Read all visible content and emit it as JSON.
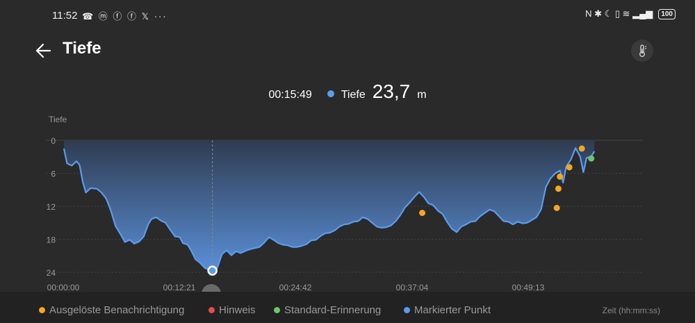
{
  "status_bar": {
    "time": "11:52",
    "notification_icons": "☎ ⓜ ⓕ ⓕ 𝕏 ···",
    "right_icons": "N ✱ ☾ ▯ ≋ ▂▄▆",
    "battery": "100"
  },
  "header": {
    "title": "Tiefe",
    "back_icon": "arrow-left-icon",
    "action_icon": "thermometer-icon"
  },
  "readout": {
    "time": "00:15:49",
    "label": "Tiefe",
    "value": "23,7",
    "unit": "m"
  },
  "colors": {
    "line": "#5b9cf0",
    "notification": "#f5a623",
    "hint": "#e84b4b",
    "reminder": "#6dc56b",
    "marked": "#5b9cf0",
    "background": "#2a2a2a"
  },
  "chart_data": {
    "type": "area",
    "ylabel": "Tiefe",
    "y_inverted": true,
    "ylim": [
      0,
      24
    ],
    "y_ticks": [
      "0",
      "6",
      "12",
      "18",
      "24"
    ],
    "x_ticks": [
      "00:00:00",
      "00:12:21",
      "00:24:42",
      "00:37:04",
      "00:49:13"
    ],
    "xlim_sec": [
      0,
      3700
    ],
    "series": [
      {
        "points": [
          [
            0,
            1.5
          ],
          [
            20,
            4.2
          ],
          [
            50,
            4.6
          ],
          [
            80,
            3.8
          ],
          [
            100,
            4.5
          ],
          [
            120,
            7.5
          ],
          [
            140,
            9.5
          ],
          [
            170,
            8.7
          ],
          [
            210,
            8.8
          ],
          [
            240,
            9.5
          ],
          [
            270,
            10.6
          ],
          [
            300,
            12.8
          ],
          [
            330,
            15.6
          ],
          [
            360,
            17.0
          ],
          [
            390,
            18.5
          ],
          [
            420,
            18.1
          ],
          [
            450,
            18.8
          ],
          [
            480,
            18.4
          ],
          [
            510,
            17.5
          ],
          [
            540,
            15.2
          ],
          [
            560,
            14.3
          ],
          [
            590,
            14.0
          ],
          [
            620,
            14.6
          ],
          [
            650,
            15.0
          ],
          [
            680,
            16.3
          ],
          [
            710,
            17.5
          ],
          [
            740,
            17.6
          ],
          [
            760,
            18.7
          ],
          [
            790,
            19.0
          ],
          [
            810,
            19.9
          ],
          [
            840,
            21.6
          ],
          [
            870,
            22.3
          ],
          [
            900,
            23.2
          ],
          [
            930,
            23.6
          ],
          [
            949,
            23.7
          ],
          [
            980,
            23.2
          ],
          [
            1010,
            20.7
          ],
          [
            1040,
            20.0
          ],
          [
            1070,
            20.9
          ],
          [
            1100,
            20.2
          ],
          [
            1130,
            20.5
          ],
          [
            1160,
            20.1
          ],
          [
            1190,
            19.8
          ],
          [
            1220,
            19.6
          ],
          [
            1250,
            19.4
          ],
          [
            1280,
            18.6
          ],
          [
            1310,
            17.6
          ],
          [
            1340,
            18.1
          ],
          [
            1370,
            18.7
          ],
          [
            1400,
            19.0
          ],
          [
            1430,
            19.1
          ],
          [
            1460,
            19.4
          ],
          [
            1490,
            19.4
          ],
          [
            1520,
            19.2
          ],
          [
            1550,
            18.9
          ],
          [
            1580,
            18.2
          ],
          [
            1610,
            18.1
          ],
          [
            1640,
            17.4
          ],
          [
            1670,
            16.9
          ],
          [
            1700,
            16.8
          ],
          [
            1730,
            16.4
          ],
          [
            1760,
            15.7
          ],
          [
            1790,
            15.3
          ],
          [
            1820,
            15.2
          ],
          [
            1850,
            14.8
          ],
          [
            1880,
            14.7
          ],
          [
            1910,
            14.0
          ],
          [
            1940,
            14.3
          ],
          [
            1970,
            15.0
          ],
          [
            2000,
            15.7
          ],
          [
            2030,
            15.9
          ],
          [
            2060,
            15.8
          ],
          [
            2090,
            15.5
          ],
          [
            2120,
            14.7
          ],
          [
            2150,
            13.6
          ],
          [
            2180,
            12.2
          ],
          [
            2210,
            11.3
          ],
          [
            2240,
            10.3
          ],
          [
            2270,
            9.4
          ],
          [
            2300,
            10.3
          ],
          [
            2330,
            11.5
          ],
          [
            2360,
            11.8
          ],
          [
            2390,
            12.8
          ],
          [
            2420,
            13.4
          ],
          [
            2450,
            14.9
          ],
          [
            2480,
            16.1
          ],
          [
            2510,
            16.7
          ],
          [
            2540,
            15.7
          ],
          [
            2570,
            15.3
          ],
          [
            2600,
            14.8
          ],
          [
            2630,
            14.7
          ],
          [
            2660,
            13.8
          ],
          [
            2690,
            13.2
          ],
          [
            2720,
            12.6
          ],
          [
            2750,
            12.9
          ],
          [
            2780,
            13.8
          ],
          [
            2810,
            14.7
          ],
          [
            2840,
            14.8
          ],
          [
            2870,
            15.3
          ],
          [
            2900,
            14.8
          ],
          [
            2930,
            15.1
          ],
          [
            2960,
            15.0
          ],
          [
            2990,
            14.5
          ],
          [
            3020,
            14.0
          ],
          [
            3050,
            12.5
          ],
          [
            3080,
            8.5
          ],
          [
            3110,
            6.9
          ],
          [
            3140,
            6.0
          ],
          [
            3170,
            5.5
          ],
          [
            3190,
            7.7
          ],
          [
            3210,
            4.8
          ],
          [
            3240,
            3.5
          ],
          [
            3270,
            1.4
          ],
          [
            3300,
            3.0
          ],
          [
            3320,
            5.8
          ],
          [
            3340,
            3.2
          ],
          [
            3370,
            2.9
          ],
          [
            3390,
            2.0
          ]
        ]
      }
    ],
    "notification_markers": [
      [
        2290,
        13.2
      ],
      [
        3150,
        12.3
      ],
      [
        3160,
        8.8
      ],
      [
        3170,
        6.6
      ],
      [
        3230,
        4.9
      ],
      [
        3310,
        1.5
      ]
    ],
    "reminder_markers": [
      [
        3370,
        3.3
      ]
    ],
    "marked_point": [
      949,
      23.7
    ]
  },
  "legend": {
    "notification": "Ausgelöste Benachrichtigung",
    "hint": "Hinweis",
    "reminder": "Standard-Erinnerung",
    "marked": "Markierter Punkt",
    "axis_label": "Zeit (hh:mm:ss)"
  }
}
